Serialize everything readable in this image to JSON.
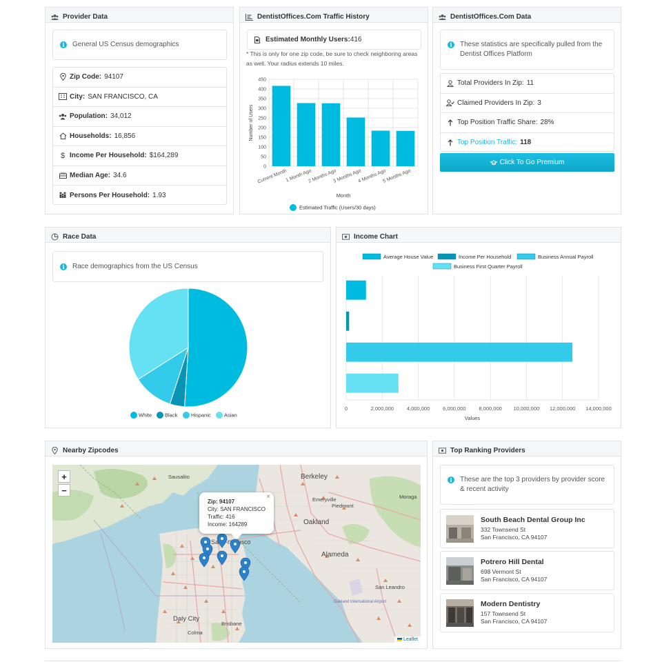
{
  "provider_data": {
    "title": "Provider Data",
    "info": "General US Census demographics",
    "rows": [
      {
        "label": "Zip Code:",
        "value": "94107",
        "icon": "map-pin-icon"
      },
      {
        "label": "City:",
        "value": "SAN FRANCISCO, CA",
        "icon": "city-icon"
      },
      {
        "label": "Population:",
        "value": "34,012",
        "icon": "users-icon"
      },
      {
        "label": "Households:",
        "value": "16,856",
        "icon": "home-icon"
      },
      {
        "label": "Income Per Household:",
        "value": "$164,289",
        "icon": "dollar-icon"
      },
      {
        "label": "Median Age:",
        "value": "34.6",
        "icon": "calendar-icon"
      },
      {
        "label": "Persons Per Household:",
        "value": "1.93",
        "icon": "people-icon"
      }
    ]
  },
  "traffic": {
    "title": "DentistOffices.Com Traffic History",
    "users_label": "Estimated Monthly Users:",
    "users_value": "416",
    "note": "* This is only for one zip code, be sure to check neighboring areas as well. Your radius extends 10 miles."
  },
  "do_data": {
    "title": "DentistOffices.Com Data",
    "info": "These statistics are specifically pulled from the Dentist Offices Platform",
    "rows": [
      {
        "label": "Total Providers In Zip:",
        "value": "11",
        "icon": "user-icon"
      },
      {
        "label": "Claimed Providers In Zip:",
        "value": "3",
        "icon": "user-check-icon"
      },
      {
        "label": "Top Position Traffic Share:",
        "value": "28%",
        "icon": "arrow-up-icon"
      },
      {
        "label": "Top Position Traffic:",
        "value": "118",
        "icon": "arrow-up-icon"
      }
    ],
    "premium_label": "Click To Go Premium"
  },
  "race": {
    "title": "Race Data",
    "info": "Race demographics from the US Census"
  },
  "income": {
    "title": "Income Chart"
  },
  "nearby": {
    "title": "Nearby Zipcodes",
    "zoom_in": "+",
    "zoom_out": "−",
    "popup": {
      "zip_label": "Zip:",
      "zip": "94107",
      "city": "City: SAN FRANCISCO",
      "traffic": "Traffic: 416",
      "income": "Income: 164289",
      "close": "×"
    },
    "map_labels": [
      "Berkeley",
      "Sausalito",
      "Emeryville",
      "Piedmont",
      "Moraga",
      "Oakland",
      "Alameda",
      "San Leandro",
      "Daly City",
      "Brisbane",
      "Colma",
      "Oakland International Airport",
      "San Francisco"
    ],
    "attribution": "Leaflet"
  },
  "top_providers": {
    "title": "Top Ranking Providers",
    "info": "These are the top 3 providers by provider score & recent activity",
    "items": [
      {
        "name": "South Beach Dental Group Inc",
        "street": "332 Townsend St",
        "city": "San Francisco, CA 94107"
      },
      {
        "name": "Potrero Hill Dental",
        "street": "698 Vermont St",
        "city": "San Francisco, CA 94107"
      },
      {
        "name": "Modern Dentistry",
        "street": "157 Townsend St",
        "city": "San Francisco, CA 94107"
      }
    ]
  },
  "colors": {
    "accent": "#00bbe0",
    "white": "#00bbe0",
    "black": "#0894b4",
    "hispanic": "#33cbe9",
    "asian": "#66e1f4"
  },
  "chart_data": [
    {
      "type": "bar",
      "categories": [
        "Current Month",
        "1 Month Ago",
        "2 Months Ago",
        "3 Months Ago",
        "4 Months Ago",
        "5 Months Ago"
      ],
      "series": [
        {
          "name": "Estimated Traffic (Users/30 days)",
          "values": [
            416,
            327,
            326,
            252,
            184,
            183
          ]
        }
      ],
      "xlabel": "Month",
      "ylabel": "Number of Users",
      "ylim": [
        0,
        450
      ],
      "yticks": [
        "450",
        "400",
        "350",
        "300",
        "250",
        "200",
        "150",
        "100",
        "50",
        "0"
      ],
      "grid": true,
      "legend": "bottom"
    },
    {
      "type": "pie",
      "categories": [
        "White",
        "Black",
        "Hispanic",
        "Asian"
      ],
      "values": [
        51,
        4,
        11,
        34
      ],
      "legend": "bottom"
    },
    {
      "type": "bar",
      "orientation": "horizontal",
      "series": [
        {
          "name": "Average House Value",
          "value": 1100000
        },
        {
          "name": "Income Per Household",
          "value": 164289
        },
        {
          "name": "Business Annual Payroll",
          "value": 12550000
        },
        {
          "name": "Business First Quarter Payroll",
          "value": 2900000
        }
      ],
      "xlabel": "Values",
      "xlim": [
        0,
        14000000
      ],
      "xticks": [
        "0",
        "2,000,000",
        "4,000,000",
        "6,000,000",
        "8,000,000",
        "10,000,000",
        "12,000,000",
        "14,000,000"
      ],
      "grid": true,
      "legend": "top"
    }
  ]
}
